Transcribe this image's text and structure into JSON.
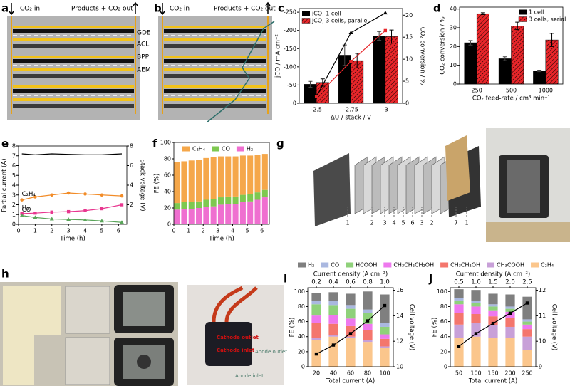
{
  "panels": {
    "a": {
      "label": "a",
      "inlet": "CO₂ in",
      "outlet": "Products + CO₂ out",
      "layers": [
        "GDE",
        "ACL",
        "BPP",
        "AEM"
      ]
    },
    "b": {
      "label": "b",
      "inlet": "CO₂ in",
      "outlet": "Products + CO₂ out"
    },
    "g": {
      "label": "g",
      "parts": [
        "1",
        "2",
        "3",
        "4",
        "5",
        "6",
        "3",
        "2",
        "7",
        "1"
      ]
    },
    "h": {
      "label": "h",
      "annotations": [
        "Cathode outlet",
        "Cathode inlet",
        "Anode outlet",
        "Anode inlet"
      ]
    }
  },
  "chart_data": [
    {
      "type": "bar",
      "label": "c",
      "xlabel": "ΔU / stack / V",
      "ylabel": "jCO / mA cm⁻²",
      "y2label": "CO₂ conversion / %",
      "categories": [
        "-2.5",
        "-2.75",
        "-3"
      ],
      "ylim": [
        0,
        -260
      ],
      "yticks": [
        0,
        -50,
        -100,
        -150,
        -200,
        -250
      ],
      "y2lim": [
        0,
        21.5
      ],
      "y2ticks": [
        0,
        5,
        10,
        15,
        20
      ],
      "legend": "upper left",
      "series": [
        {
          "name": "jCO, 1 cell",
          "color": "#000000",
          "values": [
            -52,
            -132,
            -185
          ],
          "errors": [
            8,
            28,
            12
          ]
        },
        {
          "name": "jCO, 3 cells, parallel",
          "color": "#e8262a",
          "hatch": true,
          "values": [
            -57,
            -117,
            -183
          ],
          "errors": [
            10,
            20,
            18
          ]
        },
        {
          "color": "#000000",
          "axis": "y2",
          "marker": "triangle",
          "values": [
            1.5,
            16,
            20.5
          ]
        },
        {
          "color": "#e8262a",
          "axis": "y2",
          "marker": "square",
          "values": [
            1.5,
            9.5,
            16.5
          ]
        }
      ]
    },
    {
      "type": "bar",
      "label": "d",
      "xlabel": "CO₂ feed-rate / cm³ min⁻¹",
      "ylabel": "CO₂ conversion / %",
      "categories": [
        "250",
        "500",
        "1000"
      ],
      "ylim": [
        0,
        41
      ],
      "yticks": [
        0,
        10,
        20,
        30,
        40
      ],
      "legend": "upper right",
      "series": [
        {
          "name": "1 cell",
          "color": "#000000",
          "values": [
            22,
            13.5,
            7
          ],
          "errors": [
            1.2,
            1,
            0.4
          ]
        },
        {
          "name": "3 cells, serial",
          "color": "#e8262a",
          "hatch": true,
          "values": [
            37.5,
            31,
            23.5
          ],
          "errors": [
            0.5,
            2,
            3.5
          ]
        }
      ]
    },
    {
      "type": "line",
      "label": "e",
      "xlabel": "Time (h)",
      "ylabel": "Partial current (A)",
      "y2label": "Stack voltage (V)",
      "xlim": [
        0,
        6.5
      ],
      "xticks": [
        0,
        1,
        2,
        3,
        4,
        5,
        6
      ],
      "ylim": [
        0,
        8
      ],
      "yticks": [
        0,
        1,
        2,
        3,
        4,
        5,
        6,
        7,
        8
      ],
      "y2lim": [
        0,
        8
      ],
      "y2ticks": [
        2,
        4,
        6,
        8
      ],
      "x": [
        0.2,
        1,
        2,
        3,
        4,
        5,
        6.2
      ],
      "series": [
        {
          "name": "C₂H₄",
          "color": "#f28c28",
          "marker": "circle",
          "values": [
            2.5,
            2.8,
            3.0,
            3.2,
            3.1,
            3.0,
            2.9
          ]
        },
        {
          "name": "H₂",
          "color": "#e8368f",
          "marker": "square",
          "values": [
            1.1,
            1.15,
            1.25,
            1.3,
            1.4,
            1.6,
            2.0
          ]
        },
        {
          "name": "CO",
          "color": "#5aa55a",
          "marker": "triangle",
          "values": [
            0.9,
            0.7,
            0.55,
            0.5,
            0.45,
            0.35,
            0.2
          ]
        },
        {
          "color": "#000000",
          "axis": "y2",
          "values": [
            7.2,
            7.1,
            7.2,
            7.15,
            7.1,
            7.1,
            7.2
          ]
        }
      ]
    },
    {
      "type": "stacked_bar",
      "label": "f",
      "xlabel": "Time (h)",
      "ylabel": "FE (%)",
      "xlim": [
        0,
        6.5
      ],
      "xticks": [
        0,
        1,
        2,
        3,
        4,
        5,
        6
      ],
      "ylim": [
        0,
        100
      ],
      "yticks": [
        0,
        20,
        40,
        60,
        80,
        100
      ],
      "legend": "upper center",
      "x": [
        0.2,
        0.7,
        1.2,
        1.7,
        2.2,
        2.7,
        3.2,
        3.7,
        4.2,
        4.7,
        5.2,
        5.7,
        6.2
      ],
      "series": [
        {
          "name": "C₂H₄",
          "color": "#f5a74a",
          "values": [
            50,
            50,
            51,
            51,
            51,
            51,
            50,
            49,
            49,
            48,
            47,
            46,
            44
          ]
        },
        {
          "name": "CO",
          "color": "#7ec850",
          "values": [
            8,
            8,
            8,
            8,
            9,
            9,
            9,
            9,
            9,
            9,
            9,
            9,
            9
          ]
        },
        {
          "name": "H₂",
          "color": "#ef6fd0",
          "values": [
            18,
            19,
            19,
            20,
            21,
            22,
            24,
            25,
            25,
            27,
            28,
            30,
            33
          ]
        }
      ]
    },
    {
      "type": "stacked_bar",
      "label": "i",
      "xlabel": "Total current (A)",
      "x2label": "Current density (A cm⁻²)",
      "ylabel": "FE (%)",
      "y2label": "Cell voltage (V)",
      "categories": [
        "20",
        "40",
        "60",
        "80",
        "100"
      ],
      "top_categories": [
        "0.2",
        "0.4",
        "0.6",
        "0.8",
        "1.0"
      ],
      "ylim": [
        0,
        105
      ],
      "yticks": [
        0,
        20,
        40,
        60,
        80,
        100
      ],
      "y2lim": [
        10,
        16.2
      ],
      "y2ticks": [
        10,
        12,
        14,
        16
      ],
      "legend": "above",
      "series": [
        {
          "name": "H₂",
          "color": "#7f7f7f",
          "values": [
            10,
            12,
            15,
            24,
            38
          ]
        },
        {
          "name": "CO",
          "color": "#aab8e0",
          "values": [
            5,
            5,
            5,
            5,
            5
          ]
        },
        {
          "name": "HCOOH",
          "color": "#8fd17a",
          "values": [
            15,
            13,
            13,
            14,
            10
          ]
        },
        {
          "name": "CH₃CH₂CH₂OH",
          "color": "#ee78ee",
          "values": [
            10,
            12,
            10,
            8,
            6
          ]
        },
        {
          "name": "CH₃CH₂OH",
          "color": "#f4766d",
          "values": [
            20,
            15,
            14,
            14,
            10
          ]
        },
        {
          "name": "CH₃COOH",
          "color": "#c8a0d8",
          "values": [
            3,
            2,
            2,
            2,
            2
          ]
        },
        {
          "name": "C₂H₄",
          "color": "#fbc68c",
          "values": [
            35,
            40,
            38,
            33,
            25
          ]
        },
        {
          "color": "#000000",
          "axis": "y2",
          "marker": "square",
          "values": [
            11.0,
            11.7,
            12.6,
            13.6,
            14.8
          ]
        }
      ]
    },
    {
      "type": "stacked_bar",
      "label": "j",
      "xlabel": "Total current (A)",
      "x2label": "Current density (A cm⁻²)",
      "ylabel": "FE (%)",
      "y2label": "Cell voltage (V)",
      "categories": [
        "50",
        "100",
        "150",
        "200",
        "250"
      ],
      "top_categories": [
        "0.5",
        "1.0",
        "1.5",
        "2.0",
        "2.5"
      ],
      "ylim": [
        0,
        105
      ],
      "yticks": [
        0,
        20,
        40,
        60,
        80,
        100
      ],
      "y2lim": [
        9,
        12.1
      ],
      "y2ticks": [
        9,
        10,
        11,
        12
      ],
      "series": [
        {
          "color": "#7f7f7f",
          "values": [
            12,
            14,
            14,
            16,
            30
          ]
        },
        {
          "color": "#aab8e0",
          "values": [
            3,
            3,
            3,
            3,
            3
          ]
        },
        {
          "color": "#8fd17a",
          "values": [
            5,
            5,
            5,
            4,
            4
          ]
        },
        {
          "color": "#ee78ee",
          "values": [
            12,
            10,
            8,
            8,
            6
          ]
        },
        {
          "color": "#f4766d",
          "values": [
            15,
            12,
            12,
            12,
            10
          ]
        },
        {
          "color": "#c8a0d8",
          "values": [
            18,
            18,
            17,
            15,
            18
          ]
        },
        {
          "color": "#fbc68c",
          "values": [
            38,
            40,
            38,
            38,
            22
          ]
        },
        {
          "color": "#000000",
          "axis": "y2",
          "marker": "square",
          "values": [
            9.8,
            10.3,
            10.7,
            11.1,
            11.5
          ]
        }
      ]
    }
  ]
}
